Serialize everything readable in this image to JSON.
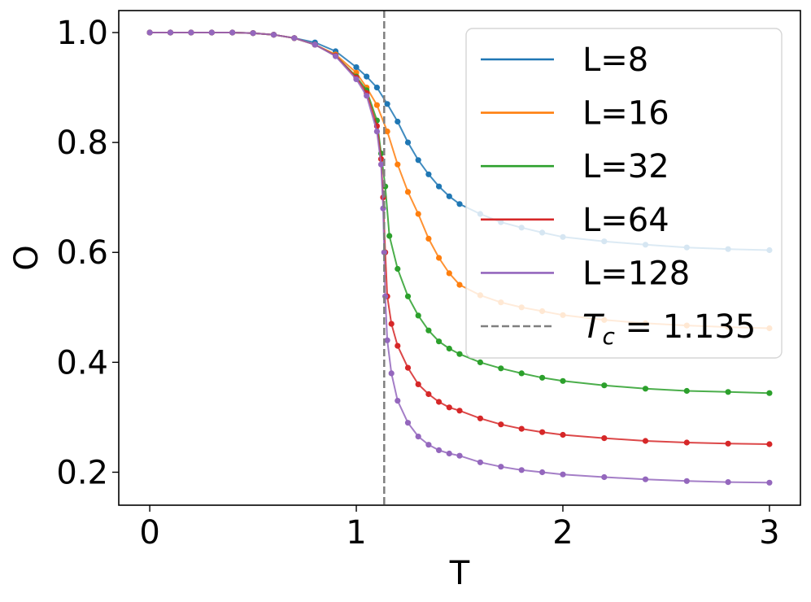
{
  "chart_data": {
    "type": "line",
    "xlabel": "T",
    "ylabel": "O",
    "xlim": [
      -0.15,
      3.15
    ],
    "ylim": [
      0.14,
      1.04
    ],
    "x_ticks": [
      0,
      1,
      2,
      3
    ],
    "x_tick_labels": [
      "0",
      "1",
      "2",
      "3"
    ],
    "y_ticks": [
      0.2,
      0.4,
      0.6,
      0.8,
      1.0
    ],
    "y_tick_labels": [
      "0.2",
      "0.4",
      "0.6",
      "0.8",
      "1.0"
    ],
    "grid": false,
    "legend_position": "top-right",
    "critical_line": {
      "x": 1.135,
      "label": "T_c = 1.135",
      "color": "#7f7f7f",
      "style": "dashed"
    },
    "series": [
      {
        "name": "L=8",
        "color": "#1f77b4",
        "points": [
          [
            0,
            1.0
          ],
          [
            0.1,
            1.0
          ],
          [
            0.2,
            1.0
          ],
          [
            0.3,
            1.0
          ],
          [
            0.4,
            1.0
          ],
          [
            0.5,
            0.999
          ],
          [
            0.6,
            0.996
          ],
          [
            0.7,
            0.99
          ],
          [
            0.8,
            0.982
          ],
          [
            0.9,
            0.966
          ],
          [
            1.0,
            0.937
          ],
          [
            1.05,
            0.92
          ],
          [
            1.1,
            0.9
          ],
          [
            1.15,
            0.87
          ],
          [
            1.2,
            0.838
          ],
          [
            1.25,
            0.8
          ],
          [
            1.3,
            0.768
          ],
          [
            1.35,
            0.742
          ],
          [
            1.4,
            0.72
          ],
          [
            1.45,
            0.702
          ],
          [
            1.5,
            0.688
          ],
          [
            1.6,
            0.67
          ],
          [
            1.7,
            0.655
          ],
          [
            1.8,
            0.645
          ],
          [
            1.9,
            0.636
          ],
          [
            2.0,
            0.628
          ],
          [
            2.2,
            0.62
          ],
          [
            2.4,
            0.614
          ],
          [
            2.6,
            0.609
          ],
          [
            2.8,
            0.606
          ],
          [
            3.0,
            0.604
          ]
        ]
      },
      {
        "name": "L=16",
        "color": "#ff7f0e",
        "points": [
          [
            0,
            1.0
          ],
          [
            0.1,
            1.0
          ],
          [
            0.2,
            1.0
          ],
          [
            0.3,
            1.0
          ],
          [
            0.4,
            1.0
          ],
          [
            0.5,
            0.999
          ],
          [
            0.6,
            0.996
          ],
          [
            0.7,
            0.99
          ],
          [
            0.8,
            0.978
          ],
          [
            0.9,
            0.96
          ],
          [
            1.0,
            0.927
          ],
          [
            1.05,
            0.9
          ],
          [
            1.1,
            0.868
          ],
          [
            1.15,
            0.82
          ],
          [
            1.2,
            0.76
          ],
          [
            1.25,
            0.71
          ],
          [
            1.3,
            0.67
          ],
          [
            1.35,
            0.625
          ],
          [
            1.4,
            0.59
          ],
          [
            1.45,
            0.562
          ],
          [
            1.5,
            0.541
          ],
          [
            1.6,
            0.522
          ],
          [
            1.7,
            0.509
          ],
          [
            1.8,
            0.5
          ],
          [
            1.9,
            0.493
          ],
          [
            2.0,
            0.486
          ],
          [
            2.2,
            0.477
          ],
          [
            2.4,
            0.471
          ],
          [
            2.6,
            0.467
          ],
          [
            2.8,
            0.464
          ],
          [
            3.0,
            0.462
          ]
        ]
      },
      {
        "name": "L=32",
        "color": "#2ca02c",
        "points": [
          [
            0,
            1.0
          ],
          [
            0.1,
            1.0
          ],
          [
            0.2,
            1.0
          ],
          [
            0.3,
            1.0
          ],
          [
            0.4,
            1.0
          ],
          [
            0.5,
            0.999
          ],
          [
            0.6,
            0.996
          ],
          [
            0.7,
            0.99
          ],
          [
            0.8,
            0.978
          ],
          [
            0.9,
            0.958
          ],
          [
            1.0,
            0.92
          ],
          [
            1.05,
            0.895
          ],
          [
            1.1,
            0.84
          ],
          [
            1.12,
            0.78
          ],
          [
            1.14,
            0.72
          ],
          [
            1.16,
            0.63
          ],
          [
            1.2,
            0.57
          ],
          [
            1.25,
            0.52
          ],
          [
            1.3,
            0.485
          ],
          [
            1.35,
            0.458
          ],
          [
            1.4,
            0.438
          ],
          [
            1.45,
            0.425
          ],
          [
            1.5,
            0.415
          ],
          [
            1.6,
            0.4
          ],
          [
            1.7,
            0.389
          ],
          [
            1.8,
            0.38
          ],
          [
            1.9,
            0.372
          ],
          [
            2.0,
            0.366
          ],
          [
            2.2,
            0.358
          ],
          [
            2.4,
            0.352
          ],
          [
            2.6,
            0.348
          ],
          [
            2.8,
            0.346
          ],
          [
            3.0,
            0.344
          ]
        ]
      },
      {
        "name": "L=64",
        "color": "#d62728",
        "points": [
          [
            0,
            1.0
          ],
          [
            0.1,
            1.0
          ],
          [
            0.2,
            1.0
          ],
          [
            0.3,
            1.0
          ],
          [
            0.4,
            1.0
          ],
          [
            0.5,
            0.999
          ],
          [
            0.6,
            0.996
          ],
          [
            0.7,
            0.99
          ],
          [
            0.8,
            0.978
          ],
          [
            0.9,
            0.958
          ],
          [
            1.0,
            0.918
          ],
          [
            1.05,
            0.89
          ],
          [
            1.1,
            0.83
          ],
          [
            1.12,
            0.77
          ],
          [
            1.13,
            0.7
          ],
          [
            1.14,
            0.6
          ],
          [
            1.15,
            0.52
          ],
          [
            1.17,
            0.47
          ],
          [
            1.2,
            0.43
          ],
          [
            1.25,
            0.39
          ],
          [
            1.3,
            0.36
          ],
          [
            1.35,
            0.342
          ],
          [
            1.4,
            0.328
          ],
          [
            1.45,
            0.318
          ],
          [
            1.5,
            0.312
          ],
          [
            1.6,
            0.298
          ],
          [
            1.7,
            0.287
          ],
          [
            1.8,
            0.279
          ],
          [
            1.9,
            0.273
          ],
          [
            2.0,
            0.268
          ],
          [
            2.2,
            0.262
          ],
          [
            2.4,
            0.257
          ],
          [
            2.6,
            0.254
          ],
          [
            2.8,
            0.252
          ],
          [
            3.0,
            0.251
          ]
        ]
      },
      {
        "name": "L=128",
        "color": "#9467bd",
        "points": [
          [
            0,
            1.0
          ],
          [
            0.1,
            1.0
          ],
          [
            0.2,
            1.0
          ],
          [
            0.3,
            1.0
          ],
          [
            0.4,
            1.0
          ],
          [
            0.5,
            0.999
          ],
          [
            0.6,
            0.996
          ],
          [
            0.7,
            0.99
          ],
          [
            0.8,
            0.978
          ],
          [
            0.9,
            0.957
          ],
          [
            1.0,
            0.915
          ],
          [
            1.05,
            0.885
          ],
          [
            1.1,
            0.82
          ],
          [
            1.12,
            0.76
          ],
          [
            1.13,
            0.68
          ],
          [
            1.135,
            0.6
          ],
          [
            1.14,
            0.52
          ],
          [
            1.15,
            0.44
          ],
          [
            1.17,
            0.38
          ],
          [
            1.2,
            0.33
          ],
          [
            1.25,
            0.29
          ],
          [
            1.3,
            0.265
          ],
          [
            1.35,
            0.25
          ],
          [
            1.4,
            0.24
          ],
          [
            1.45,
            0.234
          ],
          [
            1.5,
            0.23
          ],
          [
            1.6,
            0.218
          ],
          [
            1.7,
            0.21
          ],
          [
            1.8,
            0.204
          ],
          [
            1.9,
            0.2
          ],
          [
            2.0,
            0.196
          ],
          [
            2.2,
            0.191
          ],
          [
            2.4,
            0.187
          ],
          [
            2.6,
            0.184
          ],
          [
            2.8,
            0.182
          ],
          [
            3.0,
            0.181
          ]
        ]
      }
    ]
  }
}
